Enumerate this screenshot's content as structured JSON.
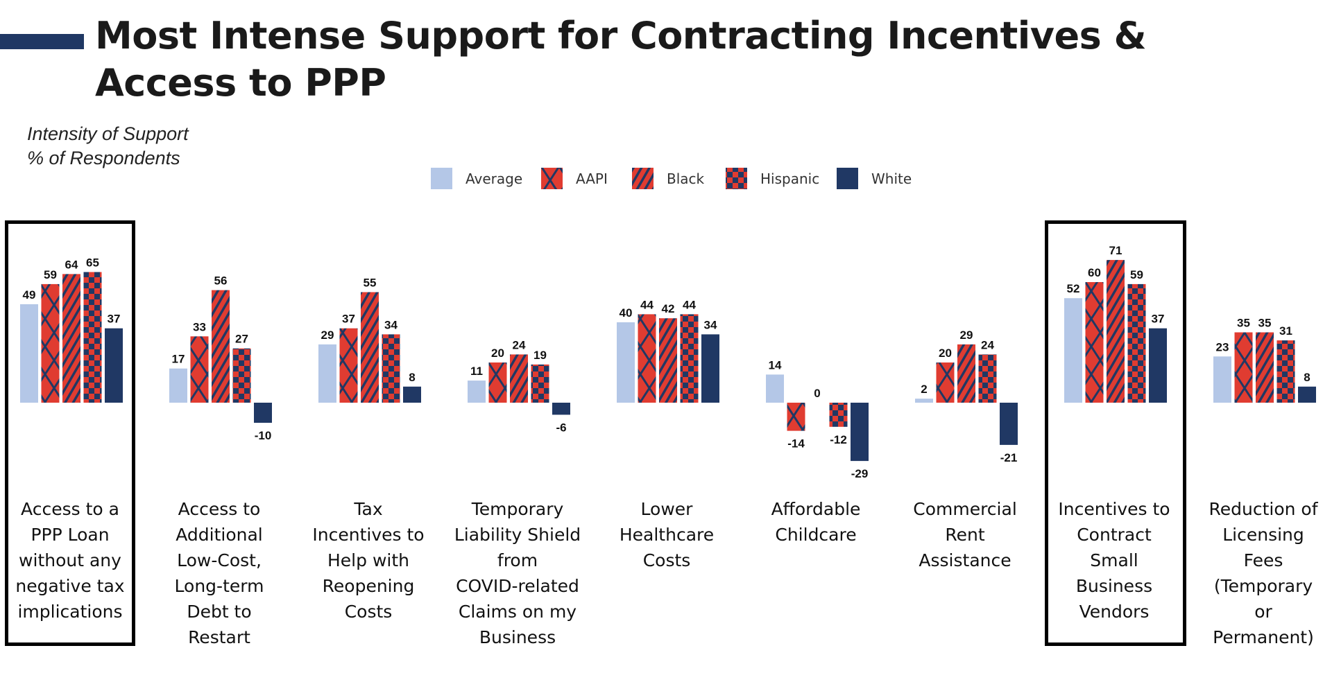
{
  "title": "Most Intense Support for Contracting Incentives &\nAccess to PPP",
  "subtitle": "Intensity of Support\n% of Respondents",
  "colors": {
    "average": "#b4c7e7",
    "red": "#e03c31",
    "navy": "#203864",
    "white": "#203864"
  },
  "chart_data": {
    "type": "bar",
    "title": "Most Intense Support for Contracting Incentives & Access to PPP",
    "ylabel": "Intensity of Support % of Respondents",
    "legend_position": "top",
    "grid": false,
    "ylim": [
      -30,
      75
    ],
    "categories": [
      "Access to a\nPPP Loan\nwithout any\nnegative tax\nimplications",
      "Access to\nAdditional\nLow-Cost,\nLong-term\nDebt to\nRestart",
      "Tax\nIncentives to\nHelp with\nReopening\nCosts",
      "Temporary\nLiability Shield\nfrom\nCOVID-related\nClaims on my\nBusiness",
      "Lower\nHealthcare\nCosts",
      "Affordable\nChildcare",
      "Commercial\nRent\nAssistance",
      "Incentives to\nContract\nSmall\nBusiness\nVendors",
      "Reduction of\nLicensing\nFees\n(Temporary\nor\nPermanent)"
    ],
    "highlighted": [
      0,
      7
    ],
    "series": [
      {
        "name": "Average",
        "pattern": "solid-light",
        "values": [
          49,
          17,
          29,
          11,
          40,
          14,
          2,
          52,
          23
        ]
      },
      {
        "name": "AAPI",
        "pattern": "crosshatch",
        "values": [
          59,
          33,
          37,
          20,
          44,
          -14,
          20,
          60,
          35
        ]
      },
      {
        "name": "Black",
        "pattern": "diagonal",
        "values": [
          64,
          56,
          55,
          24,
          42,
          0,
          29,
          71,
          35
        ]
      },
      {
        "name": "Hispanic",
        "pattern": "checker",
        "values": [
          65,
          27,
          34,
          19,
          44,
          -12,
          24,
          59,
          31
        ]
      },
      {
        "name": "White",
        "pattern": "solid-dark",
        "values": [
          37,
          -10,
          8,
          -6,
          34,
          -29,
          -21,
          37,
          8
        ]
      }
    ]
  }
}
